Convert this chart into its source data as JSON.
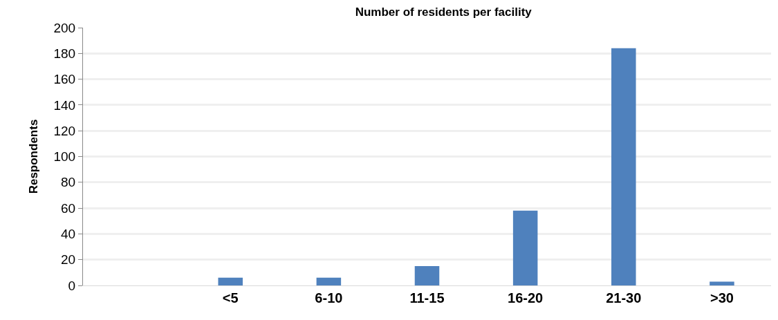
{
  "chart_data": {
    "type": "bar",
    "title": "Number of residents per facility",
    "ylabel": "Respondents",
    "categories": [
      null,
      "<5",
      "6-10",
      "11-15",
      "16-20",
      "21-30",
      ">30"
    ],
    "values": [
      null,
      6,
      6,
      15,
      58,
      184,
      3
    ],
    "color": "#4f81bd",
    "ylim": [
      0,
      200
    ],
    "yticks": [
      0,
      20,
      40,
      60,
      80,
      100,
      120,
      140,
      160,
      180,
      200
    ],
    "grid": "y"
  }
}
